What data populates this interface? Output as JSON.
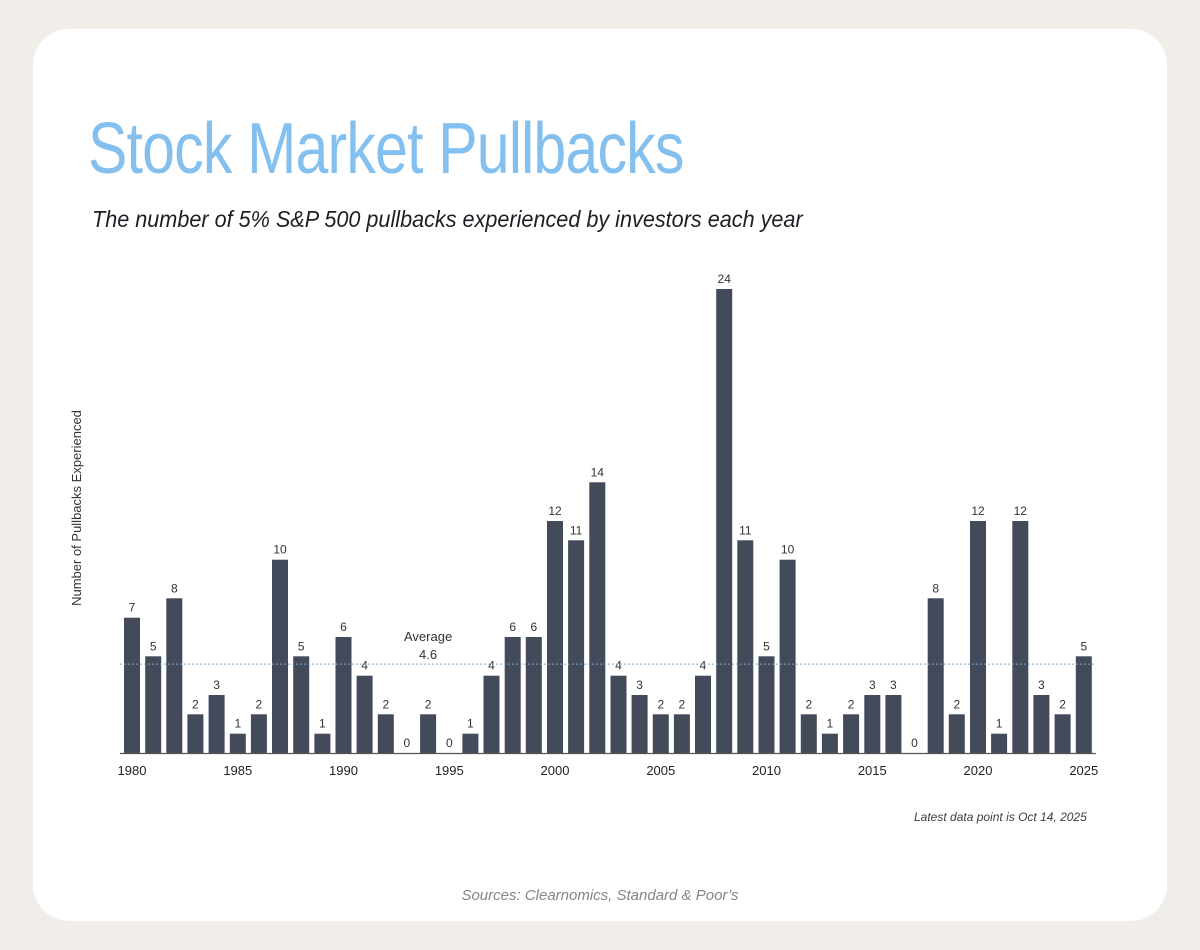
{
  "colors": {
    "bar": "#434a5a",
    "title": "#84c0ef",
    "average_line": "#7aa6d0",
    "axis": "#555555"
  },
  "header": {
    "title": "Stock Market Pullbacks",
    "subtitle": "The number of 5% S&P 500 pullbacks experienced by investors each year"
  },
  "footer": {
    "note": "Latest data point is Oct 14, 2025",
    "sources": "Sources: Clearnomics, Standard & Poor’s"
  },
  "chart_data": {
    "type": "bar",
    "title": "Stock Market Pullbacks",
    "xlabel": "",
    "ylabel": "Number of Pullbacks Experienced",
    "categories": [
      1980,
      1981,
      1982,
      1983,
      1984,
      1985,
      1986,
      1987,
      1988,
      1989,
      1990,
      1991,
      1992,
      1993,
      1994,
      1995,
      1996,
      1997,
      1998,
      1999,
      2000,
      2001,
      2002,
      2003,
      2004,
      2005,
      2006,
      2007,
      2008,
      2009,
      2010,
      2011,
      2012,
      2013,
      2014,
      2015,
      2016,
      2017,
      2018,
      2019,
      2020,
      2021,
      2022,
      2023,
      2024,
      2025
    ],
    "values": [
      7,
      5,
      8,
      2,
      3,
      1,
      2,
      10,
      5,
      1,
      6,
      4,
      2,
      0,
      2,
      0,
      1,
      4,
      6,
      6,
      12,
      11,
      14,
      4,
      3,
      2,
      2,
      4,
      24,
      11,
      5,
      10,
      2,
      1,
      2,
      3,
      3,
      0,
      8,
      2,
      12,
      1,
      12,
      3,
      2,
      5
    ],
    "x_tick_labels": [
      "1980",
      "1985",
      "1990",
      "1995",
      "2000",
      "2005",
      "2010",
      "2015",
      "2020",
      "2025"
    ],
    "ylim": [
      0,
      24
    ],
    "average": {
      "label": "Average",
      "value_label": "4.6",
      "value": 4.6
    },
    "grid": false,
    "legend": "none"
  }
}
